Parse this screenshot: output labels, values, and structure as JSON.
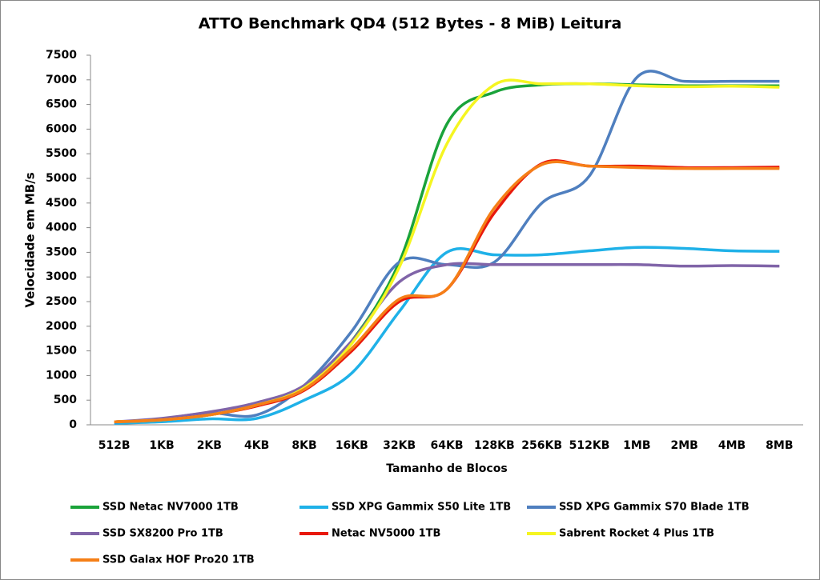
{
  "chart_data": {
    "type": "line",
    "title": "ATTO Benchmark QD4 (512 Bytes - 8 MiB) Leitura",
    "x_label": "Tamanho de Blocos",
    "y_label": "Velocidade em MB/s",
    "categories": [
      "512B",
      "1KB",
      "2KB",
      "4KB",
      "8KB",
      "16KB",
      "32KB",
      "64KB",
      "128KB",
      "256KB",
      "512KB",
      "1MB",
      "2MB",
      "4MB",
      "8MB"
    ],
    "ylim": [
      0,
      7500
    ],
    "yticks": [
      0,
      500,
      1000,
      1500,
      2000,
      2500,
      3000,
      3500,
      4000,
      4500,
      5000,
      5500,
      6000,
      6500,
      7000,
      7500
    ],
    "grid": false,
    "series": [
      {
        "name": "SSD Netac NV7000 1TB",
        "color": "#1aa33a",
        "values": [
          60,
          100,
          200,
          400,
          750,
          1700,
          3300,
          6100,
          6750,
          6900,
          6920,
          6900,
          6880,
          6880,
          6880
        ]
      },
      {
        "name": "SSD XPG Gammix S50 Lite 1TB",
        "color": "#1fb1e8",
        "values": [
          30,
          60,
          120,
          130,
          500,
          1050,
          2300,
          3500,
          3450,
          3450,
          3530,
          3600,
          3580,
          3530,
          3520
        ]
      },
      {
        "name": "SSD XPG Gammix S70 Blade 1TB",
        "color": "#4f7fbf",
        "values": [
          50,
          120,
          240,
          200,
          800,
          1900,
          3300,
          3250,
          3300,
          4500,
          5050,
          7050,
          6970,
          6970,
          6970
        ]
      },
      {
        "name": "SSD SX8200 Pro 1TB",
        "color": "#8064a8",
        "values": [
          60,
          130,
          260,
          450,
          800,
          1700,
          2900,
          3250,
          3250,
          3250,
          3250,
          3250,
          3220,
          3230,
          3220
        ]
      },
      {
        "name": "Netac NV5000 1TB",
        "color": "#e8180c",
        "values": [
          60,
          100,
          200,
          380,
          700,
          1500,
          2500,
          2750,
          4300,
          5300,
          5250,
          5250,
          5220,
          5220,
          5230
        ]
      },
      {
        "name": "Sabrent Rocket 4 Plus 1TB",
        "color": "#f5f521",
        "values": [
          60,
          100,
          200,
          400,
          750,
          1650,
          3200,
          5700,
          6900,
          6920,
          6920,
          6880,
          6860,
          6870,
          6850
        ]
      },
      {
        "name": "SSD Galax HOF Pro20 1TB",
        "color": "#f57f17",
        "values": [
          60,
          100,
          200,
          400,
          720,
          1550,
          2550,
          2750,
          4400,
          5280,
          5250,
          5220,
          5200,
          5200,
          5200
        ]
      }
    ]
  }
}
